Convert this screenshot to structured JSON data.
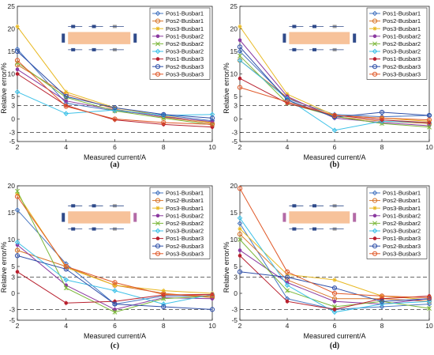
{
  "colors": {
    "Pos1-Busbar1": "#4a78c2",
    "Pos2-Busbar1": "#d8762a",
    "Pos3-Busbar1": "#e8b820",
    "Pos1-Busbar2": "#8b3aa0",
    "Pos2-Busbar2": "#7cb83a",
    "Pos3-Busbar2": "#3fc2e8",
    "Pos1-Busbar3": "#b8202e",
    "Pos2-Busbar3": "#2f4fa8",
    "Pos3-Busbar3": "#e05a2a"
  },
  "inset_icons": [
    "busbar-bar-icon",
    "sensor-chip-icon",
    "current-arrow-icon"
  ],
  "chart_data": [
    {
      "type": "line",
      "caption": "(a)",
      "xlabel": "Measured current/A",
      "ylabel": "Relative error/%",
      "x": [
        2,
        4,
        6,
        8,
        10
      ],
      "xlim": [
        2,
        10
      ],
      "ylim": [
        -5,
        25
      ],
      "xticks": [
        2,
        4,
        6,
        8,
        10
      ],
      "yticks": [
        -5,
        -3,
        0,
        3,
        5,
        10,
        15,
        20,
        25
      ],
      "ref_lines": [
        3,
        -3
      ],
      "legend_position": "top-right",
      "series": [
        {
          "name": "Pos1-Busbar1",
          "values": [
            15.5,
            3.5,
            1.8,
            0.9,
            -0.4
          ]
        },
        {
          "name": "Pos2-Busbar1",
          "values": [
            12.0,
            5.5,
            2.2,
            0.4,
            -1.0
          ]
        },
        {
          "name": "Pos3-Busbar1",
          "values": [
            20.5,
            6.0,
            2.5,
            0.7,
            -0.8
          ]
        },
        {
          "name": "Pos1-Busbar2",
          "values": [
            11.0,
            4.0,
            2.0,
            0.5,
            -0.6
          ]
        },
        {
          "name": "Pos2-Busbar2",
          "values": [
            12.5,
            4.8,
            1.8,
            0.2,
            -1.3
          ]
        },
        {
          "name": "Pos3-Busbar2",
          "values": [
            6.0,
            1.2,
            2.0,
            0.8,
            1.0
          ]
        },
        {
          "name": "Pos1-Busbar3",
          "values": [
            10.0,
            3.0,
            -0.2,
            -1.2,
            -1.8
          ]
        },
        {
          "name": "Pos2-Busbar3",
          "values": [
            15.0,
            5.0,
            2.5,
            1.0,
            0.2
          ]
        },
        {
          "name": "Pos3-Busbar3",
          "values": [
            13.0,
            2.8,
            0.0,
            -0.8,
            -1.2
          ]
        }
      ]
    },
    {
      "type": "line",
      "caption": "(b)",
      "xlabel": "Measured current/A",
      "ylabel": "Relative error/%",
      "x": [
        2,
        4,
        6,
        8,
        10
      ],
      "xlim": [
        2,
        10
      ],
      "ylim": [
        -5,
        25
      ],
      "xticks": [
        2,
        4,
        6,
        8,
        10
      ],
      "yticks": [
        -5,
        -3,
        0,
        3,
        5,
        10,
        15,
        20,
        25
      ],
      "ref_lines": [
        3,
        -3
      ],
      "legend_position": "top-right",
      "series": [
        {
          "name": "Pos1-Busbar1",
          "values": [
            15.0,
            4.5,
            1.0,
            0.5,
            0.8
          ]
        },
        {
          "name": "Pos2-Busbar1",
          "values": [
            13.0,
            4.8,
            0.5,
            -0.5,
            -1.0
          ]
        },
        {
          "name": "Pos3-Busbar1",
          "values": [
            20.5,
            5.5,
            0.8,
            0.2,
            -0.5
          ]
        },
        {
          "name": "Pos1-Busbar2",
          "values": [
            17.5,
            5.0,
            0.2,
            -0.8,
            -1.5
          ]
        },
        {
          "name": "Pos2-Busbar2",
          "values": [
            14.0,
            3.5,
            0.6,
            -1.0,
            -1.8
          ]
        },
        {
          "name": "Pos3-Busbar2",
          "values": [
            13.0,
            4.5,
            -2.5,
            -0.5,
            -0.8
          ]
        },
        {
          "name": "Pos1-Busbar3",
          "values": [
            9.0,
            3.5,
            0.8,
            -0.2,
            -0.8
          ]
        },
        {
          "name": "Pos2-Busbar3",
          "values": [
            16.0,
            4.2,
            0.4,
            1.5,
            0.8
          ]
        },
        {
          "name": "Pos3-Busbar3",
          "values": [
            7.0,
            3.8,
            0.8,
            0.2,
            -0.2
          ]
        }
      ]
    },
    {
      "type": "line",
      "caption": "(c)",
      "xlabel": "Measured current/A",
      "ylabel": "Relative error/%",
      "x": [
        2,
        4,
        6,
        8,
        10
      ],
      "xlim": [
        2,
        10
      ],
      "ylim": [
        -5,
        20
      ],
      "xticks": [
        2,
        4,
        6,
        8,
        10
      ],
      "yticks": [
        -5,
        -3,
        0,
        3,
        5,
        10,
        15,
        20
      ],
      "ref_lines": [
        3,
        -3
      ],
      "legend_position": "top-right",
      "series": [
        {
          "name": "Pos1-Busbar1",
          "values": [
            15.5,
            5.5,
            -2.0,
            -0.5,
            -0.5
          ]
        },
        {
          "name": "Pos2-Busbar1",
          "values": [
            8.0,
            5.0,
            1.5,
            0.0,
            -0.8
          ]
        },
        {
          "name": "Pos3-Busbar1",
          "values": [
            18.5,
            4.8,
            1.5,
            0.5,
            0.0
          ]
        },
        {
          "name": "Pos1-Busbar2",
          "values": [
            9.0,
            1.5,
            -3.0,
            -0.8,
            -1.0
          ]
        },
        {
          "name": "Pos2-Busbar2",
          "values": [
            19.0,
            1.0,
            -3.5,
            -1.0,
            -0.5
          ]
        },
        {
          "name": "Pos3-Busbar2",
          "values": [
            9.5,
            2.5,
            0.5,
            -2.0,
            -0.2
          ]
        },
        {
          "name": "Pos1-Busbar3",
          "values": [
            4.0,
            -1.8,
            -1.5,
            -0.3,
            -0.2
          ]
        },
        {
          "name": "Pos2-Busbar3",
          "values": [
            7.0,
            4.5,
            -2.0,
            -2.5,
            -3.0
          ]
        },
        {
          "name": "Pos3-Busbar3",
          "values": [
            18.0,
            5.0,
            2.0,
            -0.2,
            -0.5
          ]
        }
      ]
    },
    {
      "type": "line",
      "caption": "(d)",
      "xlabel": "Measured current/A",
      "ylabel": "Relative error/%",
      "x": [
        2,
        4,
        6,
        8,
        10
      ],
      "xlim": [
        2,
        10
      ],
      "ylim": [
        -5,
        20
      ],
      "xticks": [
        2,
        4,
        6,
        8,
        10
      ],
      "yticks": [
        -5,
        -3,
        0,
        3,
        5,
        10,
        15,
        20
      ],
      "ref_lines": [
        3,
        -3
      ],
      "legend_position": "top-right",
      "series": [
        {
          "name": "Pos1-Busbar1",
          "values": [
            13.0,
            -1.0,
            -3.0,
            -2.5,
            -2.0
          ]
        },
        {
          "name": "Pos2-Busbar1",
          "values": [
            11.0,
            2.5,
            -1.0,
            -1.0,
            -1.5
          ]
        },
        {
          "name": "Pos3-Busbar1",
          "values": [
            12.0,
            3.5,
            2.5,
            -0.5,
            -1.2
          ]
        },
        {
          "name": "Pos1-Busbar2",
          "values": [
            8.0,
            2.0,
            -1.5,
            -2.0,
            -1.0
          ]
        },
        {
          "name": "Pos2-Busbar2",
          "values": [
            10.0,
            0.5,
            -2.5,
            -1.5,
            -2.8
          ]
        },
        {
          "name": "Pos3-Busbar2",
          "values": [
            14.0,
            1.5,
            -3.5,
            -2.0,
            -1.5
          ]
        },
        {
          "name": "Pos1-Busbar3",
          "values": [
            7.0,
            -1.5,
            -3.0,
            -1.0,
            -0.5
          ]
        },
        {
          "name": "Pos2-Busbar3",
          "values": [
            4.0,
            3.0,
            1.0,
            -1.5,
            -1.0
          ]
        },
        {
          "name": "Pos3-Busbar3",
          "values": [
            19.5,
            4.0,
            0.0,
            -0.5,
            -0.8
          ]
        }
      ]
    }
  ]
}
